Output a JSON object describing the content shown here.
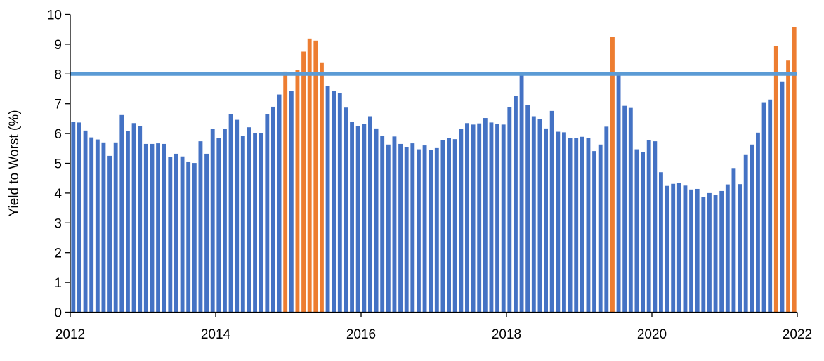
{
  "chart_data": {
    "type": "bar",
    "ylabel": "Yield to Worst (%)",
    "xlabel": "",
    "title": "",
    "ylim": [
      0,
      10
    ],
    "xlim": [
      2012,
      2022
    ],
    "y_ticks": [
      "0",
      "1",
      "2",
      "3",
      "4",
      "5",
      "6",
      "7",
      "8",
      "9",
      "10"
    ],
    "x_ticks": [
      "2012",
      "2014",
      "2016",
      "2018",
      "2020",
      "2022"
    ],
    "grid": false,
    "reference_line": {
      "y": 8,
      "color": "#5B9BD5"
    },
    "colors": {
      "below": "#4472C4",
      "above": "#ED7D31"
    },
    "start": "2012-01",
    "frequency": "monthly",
    "values": [
      6.4,
      6.37,
      6.1,
      5.87,
      5.8,
      5.7,
      5.25,
      5.7,
      6.62,
      6.08,
      6.35,
      6.24,
      5.65,
      5.65,
      5.67,
      5.65,
      5.22,
      5.32,
      5.23,
      5.06,
      5.01,
      5.74,
      5.32,
      6.15,
      5.84,
      6.15,
      6.64,
      6.46,
      5.92,
      6.21,
      6.02,
      6.02,
      6.64,
      6.9,
      7.31,
      8.08,
      7.44,
      8.13,
      8.75,
      9.19,
      9.12,
      8.39,
      7.6,
      7.42,
      7.35,
      6.87,
      6.39,
      6.24,
      6.33,
      6.58,
      6.17,
      5.92,
      5.63,
      5.9,
      5.65,
      5.54,
      5.67,
      5.47,
      5.6,
      5.46,
      5.51,
      5.77,
      5.84,
      5.81,
      6.15,
      6.35,
      6.3,
      6.34,
      6.52,
      6.37,
      6.31,
      6.3,
      6.88,
      7.26,
      8.0,
      6.95,
      6.58,
      6.48,
      6.17,
      6.76,
      6.06,
      6.04,
      5.86,
      5.86,
      5.89,
      5.84,
      5.41,
      5.63,
      6.23,
      9.25,
      7.95,
      6.93,
      6.86,
      5.47,
      5.37,
      5.77,
      5.74,
      4.7,
      4.24,
      4.31,
      4.34,
      4.25,
      4.12,
      4.14,
      3.86,
      4.0,
      3.95,
      4.07,
      4.29,
      4.84,
      4.3,
      5.3,
      5.63,
      6.03,
      7.05,
      7.14,
      8.93,
      7.73,
      8.45,
      9.57
    ]
  }
}
